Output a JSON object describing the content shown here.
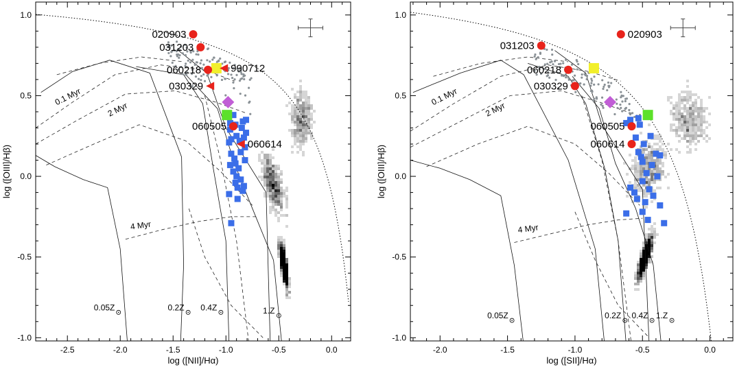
{
  "chart_data": [
    {
      "type": "scatter",
      "panel": "left",
      "xlabel": "log ([NII]/Hα)",
      "ylabel": "log ([OIII]/Hβ)",
      "xlim": [
        -2.8,
        0.18
      ],
      "ylim": [
        -1.02,
        1.08
      ],
      "xticks": [
        -2.5,
        -2.0,
        -1.5,
        -1.0,
        -0.5,
        0.0
      ],
      "xtick_labels": [
        "-2.5",
        "-2.0",
        "-1.5",
        "-1.0",
        "-0.5",
        "0.0"
      ],
      "yticks": [
        -1.0,
        -0.5,
        0.0,
        0.5,
        1.0
      ],
      "ytick_labels": [
        "-1.0",
        "-0.5",
        "0.0",
        "0.5",
        "1.0"
      ],
      "grid": false,
      "labeled_points": [
        {
          "label": "020903",
          "x": -1.31,
          "y": 0.88,
          "marker": "circle",
          "color": "#e8231b"
        },
        {
          "label": "031203",
          "x": -1.24,
          "y": 0.8,
          "marker": "circle",
          "color": "#e8231b"
        },
        {
          "label": "060218",
          "x": -1.17,
          "y": 0.66,
          "marker": "circle",
          "color": "#e8231b"
        },
        {
          "label": "990712",
          "x": -1.02,
          "y": 0.67,
          "marker": "triangle",
          "color": "#e8231b"
        },
        {
          "label": "030329",
          "x": -1.15,
          "y": 0.56,
          "marker": "triangle",
          "color": "#e8231b"
        },
        {
          "label": "060505",
          "x": -0.93,
          "y": 0.31,
          "marker": "circle",
          "color": "#e8231b"
        },
        {
          "label": "060614",
          "x": -0.86,
          "y": 0.2,
          "marker": "triangle",
          "color": "#e8231b"
        }
      ],
      "special_markers": [
        {
          "x": -1.09,
          "y": 0.67,
          "marker": "square",
          "color": "#f2ef2b"
        },
        {
          "x": -0.98,
          "y": 0.46,
          "marker": "diamond",
          "color": "#c15ed6"
        },
        {
          "x": -0.99,
          "y": 0.38,
          "marker": "square",
          "color": "#5ce12a"
        }
      ],
      "blue_squares": {
        "color": "#3b6ee8",
        "points": [
          [
            -0.93,
            0.38
          ],
          [
            -0.84,
            0.34
          ],
          [
            -0.81,
            0.35
          ],
          [
            -0.96,
            0.33
          ],
          [
            -0.91,
            0.32
          ],
          [
            -0.85,
            0.3
          ],
          [
            -0.96,
            0.29
          ],
          [
            -0.81,
            0.27
          ],
          [
            -0.9,
            0.25
          ],
          [
            -0.83,
            0.24
          ],
          [
            -0.95,
            0.23
          ],
          [
            -0.87,
            0.22
          ],
          [
            -0.97,
            0.21
          ],
          [
            -0.82,
            0.18
          ],
          [
            -0.86,
            0.15
          ],
          [
            -0.95,
            0.14
          ],
          [
            -0.92,
            0.11
          ],
          [
            -0.82,
            0.1
          ],
          [
            -0.91,
            0.08
          ],
          [
            -0.96,
            0.07
          ],
          [
            -0.88,
            0.05
          ],
          [
            -0.93,
            0.03
          ],
          [
            -0.9,
            0.0
          ],
          [
            -0.86,
            -0.02
          ],
          [
            -0.91,
            -0.04
          ],
          [
            -0.83,
            -0.06
          ],
          [
            -0.89,
            -0.07
          ],
          [
            -0.84,
            -0.09
          ],
          [
            -0.97,
            -0.11
          ],
          [
            -0.89,
            -0.14
          ],
          [
            -0.95,
            -0.29
          ]
        ]
      },
      "grid_labels": [
        {
          "text": "0.1 Myr",
          "x": -2.6,
          "y": 0.44,
          "rotate": -27
        },
        {
          "text": "2 Myr",
          "x": -2.1,
          "y": 0.37,
          "rotate": -27
        },
        {
          "text": "4 Myr",
          "x": -1.9,
          "y": -0.33,
          "rotate": -8
        }
      ],
      "metallicity_labels": [
        {
          "text": "0.05Z",
          "x": -2.25,
          "y": -0.83
        },
        {
          "text": "0.2Z",
          "x": -1.55,
          "y": -0.83
        },
        {
          "text": "0.4Z",
          "x": -1.24,
          "y": -0.83
        },
        {
          "text": "1.Z",
          "x": -0.65,
          "y": -0.85
        }
      ],
      "error_bar": {
        "x": -0.2,
        "y": 0.92
      }
    },
    {
      "type": "scatter",
      "panel": "right",
      "xlabel": "log ([SII]/Hα)",
      "ylabel": "log ([OIII]/Hβ)",
      "xlim": [
        -2.22,
        0.17
      ],
      "ylim": [
        -1.02,
        1.08
      ],
      "xticks": [
        -2.0,
        -1.5,
        -1.0,
        -0.5,
        0.0
      ],
      "xtick_labels": [
        "-2.0",
        "-1.5",
        "-1.0",
        "-0.5",
        "0.0"
      ],
      "yticks": [
        -1.0,
        -0.5,
        0.0,
        0.5,
        1.0
      ],
      "ytick_labels": [
        "-1.0",
        "-0.5",
        "0.0",
        "0.5",
        "1.0"
      ],
      "grid": false,
      "labeled_points": [
        {
          "label": "020903",
          "x": -0.66,
          "y": 0.88,
          "marker": "circle",
          "color": "#e8231b"
        },
        {
          "label": "031203",
          "x": -1.25,
          "y": 0.81,
          "marker": "circle",
          "color": "#e8231b"
        },
        {
          "label": "060218",
          "x": -1.05,
          "y": 0.66,
          "marker": "circle",
          "color": "#e8231b"
        },
        {
          "label": "030329",
          "x": -1.0,
          "y": 0.56,
          "marker": "circle",
          "color": "#e8231b"
        },
        {
          "label": "060505",
          "x": -0.58,
          "y": 0.31,
          "marker": "circle",
          "color": "#e8231b"
        },
        {
          "label": "060614",
          "x": -0.58,
          "y": 0.2,
          "marker": "circle",
          "color": "#e8231b"
        }
      ],
      "special_markers": [
        {
          "x": -0.86,
          "y": 0.67,
          "marker": "square",
          "color": "#f2ef2b"
        },
        {
          "x": -0.74,
          "y": 0.46,
          "marker": "diamond",
          "color": "#c15ed6"
        },
        {
          "x": -0.46,
          "y": 0.38,
          "marker": "square",
          "color": "#5ce12a"
        }
      ],
      "blue_squares": {
        "color": "#3b6ee8",
        "points": [
          [
            -0.53,
            0.36
          ],
          [
            -0.59,
            0.35
          ],
          [
            -0.52,
            0.32
          ],
          [
            -0.62,
            0.33
          ],
          [
            -0.44,
            0.25
          ],
          [
            -0.55,
            0.24
          ],
          [
            -0.49,
            0.2
          ],
          [
            -0.53,
            0.15
          ],
          [
            -0.4,
            0.14
          ],
          [
            -0.51,
            0.12
          ],
          [
            -0.37,
            0.13
          ],
          [
            -0.5,
            0.09
          ],
          [
            -0.43,
            0.07
          ],
          [
            -0.47,
            0.02
          ],
          [
            -0.39,
            0.0
          ],
          [
            -0.5,
            -0.03
          ],
          [
            -0.59,
            -0.07
          ],
          [
            -0.45,
            -0.08
          ],
          [
            -0.56,
            -0.1
          ],
          [
            -0.42,
            -0.12
          ],
          [
            -0.54,
            -0.14
          ],
          [
            -0.48,
            -0.16
          ],
          [
            -0.37,
            -0.18
          ],
          [
            -0.5,
            -0.22
          ],
          [
            -0.34,
            -0.29
          ],
          [
            -0.46,
            -0.27
          ],
          [
            -0.62,
            -0.23
          ]
        ]
      },
      "grid_labels": [
        {
          "text": "0.1 Myr",
          "x": -2.05,
          "y": 0.44,
          "rotate": -27
        },
        {
          "text": "2 Myr",
          "x": -1.65,
          "y": 0.37,
          "rotate": -27
        },
        {
          "text": "4 Myr",
          "x": -1.42,
          "y": -0.35,
          "rotate": -8
        }
      ],
      "metallicity_labels": [
        {
          "text": "0.05Z",
          "x": -1.65,
          "y": -0.88
        },
        {
          "text": "0.2Z",
          "x": -0.78,
          "y": -0.88
        },
        {
          "text": "0.4Z",
          "x": -0.58,
          "y": -0.88
        },
        {
          "text": "1.Z",
          "x": -0.4,
          "y": -0.88
        }
      ],
      "error_bar": {
        "x": -0.2,
        "y": 0.92
      }
    }
  ],
  "colors": {
    "grb": "#e8231b",
    "yellow": "#f2ef2b",
    "violet": "#c15ed6",
    "green": "#5ce12a",
    "blue": "#3b6ee8",
    "sdss_small_points": "#8a9196"
  }
}
